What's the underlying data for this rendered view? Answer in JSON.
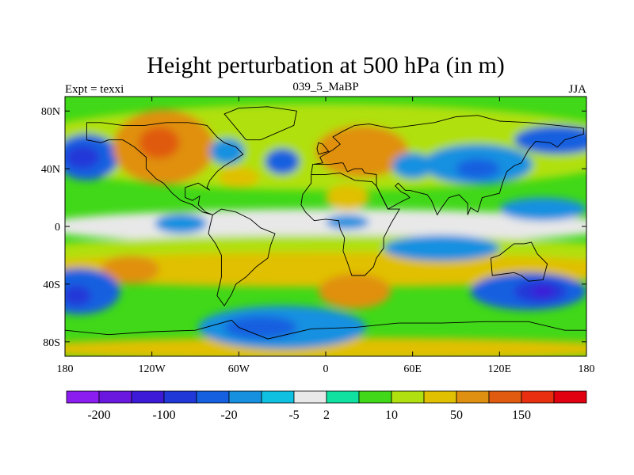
{
  "chart_data": {
    "type": "heatmap",
    "title": "Height perturbation at 500 hPa (in m)",
    "left_label": "Expt = texxi",
    "center_label": "039_5_MaBP",
    "right_label": "JJA",
    "x_range": [
      -180,
      180
    ],
    "y_range": [
      -90,
      90
    ],
    "x_ticks": [
      {
        "value": -180,
        "label": "180"
      },
      {
        "value": -120,
        "label": "120W"
      },
      {
        "value": -60,
        "label": "60W"
      },
      {
        "value": 0,
        "label": "0"
      },
      {
        "value": 60,
        "label": "60E"
      },
      {
        "value": 120,
        "label": "120E"
      },
      {
        "value": 180,
        "label": "180"
      }
    ],
    "y_ticks": [
      {
        "value": 80,
        "label": "80N"
      },
      {
        "value": 40,
        "label": "40N"
      },
      {
        "value": 0,
        "label": "0"
      },
      {
        "value": -40,
        "label": "40S"
      },
      {
        "value": -80,
        "label": "80S"
      }
    ],
    "colorbar": {
      "colors": [
        "#8c1df0",
        "#6a18e0",
        "#3c1ad8",
        "#2038d8",
        "#1560e0",
        "#1890e0",
        "#10c0e0",
        "#e8e8e8",
        "#10e0a0",
        "#40d818",
        "#b0e010",
        "#e0c000",
        "#e09010",
        "#e05a10",
        "#e83010",
        "#e00010"
      ],
      "labels": [
        {
          "index": 1,
          "label": "-200"
        },
        {
          "index": 3,
          "label": "-100"
        },
        {
          "index": 5,
          "label": "-20"
        },
        {
          "index": 7,
          "label": "-5"
        },
        {
          "index": 8,
          "label": "2"
        },
        {
          "index": 10,
          "label": "10"
        },
        {
          "index": 12,
          "label": "50"
        },
        {
          "index": 14,
          "label": "150"
        }
      ]
    },
    "regions": [
      {
        "name": "tropical-band",
        "lon": 0,
        "lat": 0,
        "rx": 200,
        "ry": 12,
        "level": 7
      },
      {
        "name": "nh-green-belt",
        "lon": 0,
        "lat": 55,
        "rx": 220,
        "ry": 30,
        "level": 10
      },
      {
        "name": "sh-green-belt",
        "lon": 0,
        "lat": -20,
        "rx": 220,
        "ry": 14,
        "level": 10
      },
      {
        "name": "sh-mid-yellow",
        "lon": 0,
        "lat": -30,
        "rx": 220,
        "ry": 12,
        "level": 11
      },
      {
        "name": "sh-polar-yellow",
        "lon": 0,
        "lat": -85,
        "rx": 220,
        "ry": 8,
        "level": 11
      },
      {
        "name": "n-pacific-trough",
        "lon": -165,
        "lat": 48,
        "rx": 22,
        "ry": 16,
        "level": 4
      },
      {
        "name": "n-pacific-trough-core",
        "lon": -168,
        "lat": 48,
        "rx": 12,
        "ry": 8,
        "level": 3
      },
      {
        "name": "n-america-ridge",
        "lon": -112,
        "lat": 55,
        "rx": 35,
        "ry": 26,
        "level": 12
      },
      {
        "name": "n-america-ridge-core",
        "lon": -115,
        "lat": 58,
        "rx": 14,
        "ry": 11,
        "level": 13
      },
      {
        "name": "n-atlantic-trough",
        "lon": -68,
        "lat": 52,
        "rx": 12,
        "ry": 9,
        "level": 5
      },
      {
        "name": "n-atlantic-trough-b",
        "lon": -30,
        "lat": 45,
        "rx": 12,
        "ry": 9,
        "level": 4
      },
      {
        "name": "europe-ridge",
        "lon": 25,
        "lat": 52,
        "rx": 32,
        "ry": 18,
        "level": 12
      },
      {
        "name": "siberia-trough",
        "lon": 105,
        "lat": 43,
        "rx": 38,
        "ry": 14,
        "level": 5
      },
      {
        "name": "siberia-trough-core",
        "lon": 105,
        "lat": 40,
        "rx": 15,
        "ry": 7,
        "level": 4
      },
      {
        "name": "central-asia-trough",
        "lon": 60,
        "lat": 42,
        "rx": 14,
        "ry": 9,
        "level": 5
      },
      {
        "name": "arctic-trough",
        "lon": 160,
        "lat": 60,
        "rx": 30,
        "ry": 10,
        "level": 4
      },
      {
        "name": "sahara-ridge",
        "lon": 15,
        "lat": 20,
        "rx": 15,
        "ry": 9,
        "level": 11
      },
      {
        "name": "atlantic-yellow",
        "lon": -60,
        "lat": 34,
        "rx": 14,
        "ry": 7,
        "level": 11
      },
      {
        "name": "sh-ridge-africa",
        "lon": 20,
        "lat": -45,
        "rx": 25,
        "ry": 12,
        "level": 12
      },
      {
        "name": "sh-ridge-pacific",
        "lon": -135,
        "lat": -30,
        "rx": 20,
        "ry": 10,
        "level": 12
      },
      {
        "name": "s-pacific-trough",
        "lon": -170,
        "lat": -45,
        "rx": 28,
        "ry": 16,
        "level": 4
      },
      {
        "name": "s-pacific-trough-core",
        "lon": -172,
        "lat": -48,
        "rx": 10,
        "ry": 7,
        "level": 3
      },
      {
        "name": "s-atlantic-trough",
        "lon": -30,
        "lat": -70,
        "rx": 58,
        "ry": 15,
        "level": 5
      },
      {
        "name": "s-atlantic-trough-core",
        "lon": -45,
        "lat": -70,
        "rx": 25,
        "ry": 8,
        "level": 4
      },
      {
        "name": "australia-trough",
        "lon": 140,
        "lat": -45,
        "rx": 40,
        "ry": 13,
        "level": 4
      },
      {
        "name": "australia-trough-core",
        "lon": 148,
        "lat": -45,
        "rx": 18,
        "ry": 8,
        "level": 3
      },
      {
        "name": "australia-trough-deep",
        "lon": 150,
        "lat": -45,
        "rx": 8,
        "ry": 4,
        "level": 2
      },
      {
        "name": "indian-ocean-trough",
        "lon": 80,
        "lat": -15,
        "rx": 40,
        "ry": 9,
        "level": 5
      },
      {
        "name": "e-pacific-trough",
        "lon": -100,
        "lat": 2,
        "rx": 18,
        "ry": 7,
        "level": 5
      },
      {
        "name": "w-pacific-trough",
        "lon": 150,
        "lat": 12,
        "rx": 30,
        "ry": 8,
        "level": 5
      },
      {
        "name": "e-atlantic-trough",
        "lon": 15,
        "lat": 3,
        "rx": 15,
        "ry": 5,
        "level": 5
      }
    ],
    "coastlines": [
      [
        [
          -165,
          72
        ],
        [
          -155,
          72
        ],
        [
          -140,
          70
        ],
        [
          -125,
          70
        ],
        [
          -110,
          72
        ],
        [
          -95,
          72
        ],
        [
          -82,
          70
        ],
        [
          -75,
          62
        ],
        [
          -70,
          58
        ],
        [
          -62,
          55
        ],
        [
          -57,
          50
        ],
        [
          -65,
          45
        ],
        [
          -70,
          42
        ],
        [
          -75,
          38
        ],
        [
          -80,
          32
        ],
        [
          -82,
          27
        ],
        [
          -80,
          25
        ],
        [
          -88,
          30
        ],
        [
          -97,
          27
        ],
        [
          -97,
          20
        ],
        [
          -92,
          18
        ],
        [
          -87,
          21
        ],
        [
          -88,
          15
        ],
        [
          -83,
          10
        ],
        [
          -78,
          8
        ],
        [
          -85,
          10
        ],
        [
          -92,
          15
        ],
        [
          -100,
          18
        ],
        [
          -106,
          23
        ],
        [
          -112,
          30
        ],
        [
          -117,
          33
        ],
        [
          -124,
          40
        ],
        [
          -124,
          48
        ],
        [
          -132,
          55
        ],
        [
          -140,
          60
        ],
        [
          -150,
          60
        ],
        [
          -155,
          58
        ],
        [
          -165,
          60
        ],
        [
          -165,
          65
        ],
        [
          -165,
          72
        ]
      ],
      [
        [
          -78,
          8
        ],
        [
          -72,
          12
        ],
        [
          -62,
          10
        ],
        [
          -52,
          5
        ],
        [
          -45,
          -1
        ],
        [
          -35,
          -5
        ],
        [
          -38,
          -13
        ],
        [
          -40,
          -22
        ],
        [
          -48,
          -28
        ],
        [
          -55,
          -35
        ],
        [
          -62,
          -40
        ],
        [
          -65,
          -47
        ],
        [
          -70,
          -55
        ],
        [
          -75,
          -48
        ],
        [
          -72,
          -35
        ],
        [
          -72,
          -20
        ],
        [
          -76,
          -12
        ],
        [
          -81,
          -5
        ],
        [
          -80,
          0
        ],
        [
          -78,
          8
        ]
      ],
      [
        [
          -10,
          36
        ],
        [
          0,
          36
        ],
        [
          10,
          37
        ],
        [
          20,
          32
        ],
        [
          32,
          31
        ],
        [
          35,
          28
        ],
        [
          43,
          12
        ],
        [
          51,
          12
        ],
        [
          45,
          2
        ],
        [
          40,
          -8
        ],
        [
          40,
          -15
        ],
        [
          35,
          -22
        ],
        [
          33,
          -28
        ],
        [
          27,
          -34
        ],
        [
          18,
          -34
        ],
        [
          15,
          -25
        ],
        [
          12,
          -17
        ],
        [
          13,
          -8
        ],
        [
          10,
          -2
        ],
        [
          9,
          4
        ],
        [
          0,
          5
        ],
        [
          -8,
          4
        ],
        [
          -14,
          10
        ],
        [
          -17,
          15
        ],
        [
          -16,
          22
        ],
        [
          -10,
          30
        ],
        [
          -10,
          36
        ]
      ],
      [
        [
          -10,
          36
        ],
        [
          -9,
          43
        ],
        [
          -2,
          44
        ],
        [
          -4,
          48
        ],
        [
          5,
          53
        ],
        [
          10,
          57
        ],
        [
          5,
          62
        ],
        [
          12,
          66
        ],
        [
          20,
          70
        ],
        [
          30,
          71
        ],
        [
          45,
          68
        ],
        [
          60,
          70
        ],
        [
          75,
          72
        ],
        [
          90,
          76
        ],
        [
          105,
          77
        ],
        [
          120,
          73
        ],
        [
          140,
          72
        ],
        [
          160,
          70
        ],
        [
          178,
          68
        ],
        [
          178,
          64
        ],
        [
          165,
          60
        ],
        [
          160,
          55
        ],
        [
          155,
          58
        ],
        [
          145,
          59
        ],
        [
          140,
          53
        ],
        [
          135,
          44
        ],
        [
          130,
          42
        ],
        [
          125,
          38
        ],
        [
          122,
          30
        ],
        [
          120,
          23
        ],
        [
          108,
          20
        ],
        [
          105,
          10
        ],
        [
          100,
          13
        ],
        [
          98,
          8
        ],
        [
          98,
          16
        ],
        [
          92,
          22
        ],
        [
          85,
          20
        ],
        [
          80,
          13
        ],
        [
          77,
          8
        ],
        [
          73,
          18
        ],
        [
          70,
          22
        ],
        [
          58,
          25
        ],
        [
          55,
          25
        ],
        [
          50,
          30
        ],
        [
          48,
          28
        ],
        [
          52,
          24
        ],
        [
          56,
          22
        ],
        [
          58,
          20
        ],
        [
          52,
          17
        ],
        [
          43,
          12
        ],
        [
          35,
          28
        ],
        [
          35,
          36
        ],
        [
          27,
          37
        ],
        [
          25,
          40
        ],
        [
          20,
          40
        ],
        [
          15,
          38
        ],
        [
          12,
          44
        ],
        [
          10,
          44
        ],
        [
          3,
          43
        ],
        [
          -9,
          43
        ],
        [
          -10,
          36
        ]
      ],
      [
        [
          114,
          -22
        ],
        [
          120,
          -20
        ],
        [
          130,
          -12
        ],
        [
          137,
          -12
        ],
        [
          142,
          -11
        ],
        [
          146,
          -19
        ],
        [
          153,
          -26
        ],
        [
          150,
          -37
        ],
        [
          140,
          -38
        ],
        [
          135,
          -34
        ],
        [
          130,
          -32
        ],
        [
          115,
          -34
        ],
        [
          114,
          -22
        ]
      ],
      [
        [
          -55,
          60
        ],
        [
          -45,
          60
        ],
        [
          -22,
          70
        ],
        [
          -20,
          80
        ],
        [
          -40,
          83
        ],
        [
          -60,
          82
        ],
        [
          -70,
          78
        ],
        [
          -55,
          60
        ]
      ],
      [
        [
          -5,
          50
        ],
        [
          2,
          52
        ],
        [
          -2,
          57
        ],
        [
          -5,
          58
        ],
        [
          -6,
          54
        ],
        [
          -5,
          50
        ]
      ],
      [
        [
          -180,
          -72
        ],
        [
          -150,
          -75
        ],
        [
          -120,
          -73
        ],
        [
          -90,
          -72
        ],
        [
          -65,
          -65
        ],
        [
          -60,
          -70
        ],
        [
          -40,
          -78
        ],
        [
          -10,
          -71
        ],
        [
          20,
          -70
        ],
        [
          50,
          -67
        ],
        [
          80,
          -67
        ],
        [
          110,
          -66
        ],
        [
          140,
          -66
        ],
        [
          165,
          -72
        ],
        [
          180,
          -72
        ]
      ]
    ]
  }
}
